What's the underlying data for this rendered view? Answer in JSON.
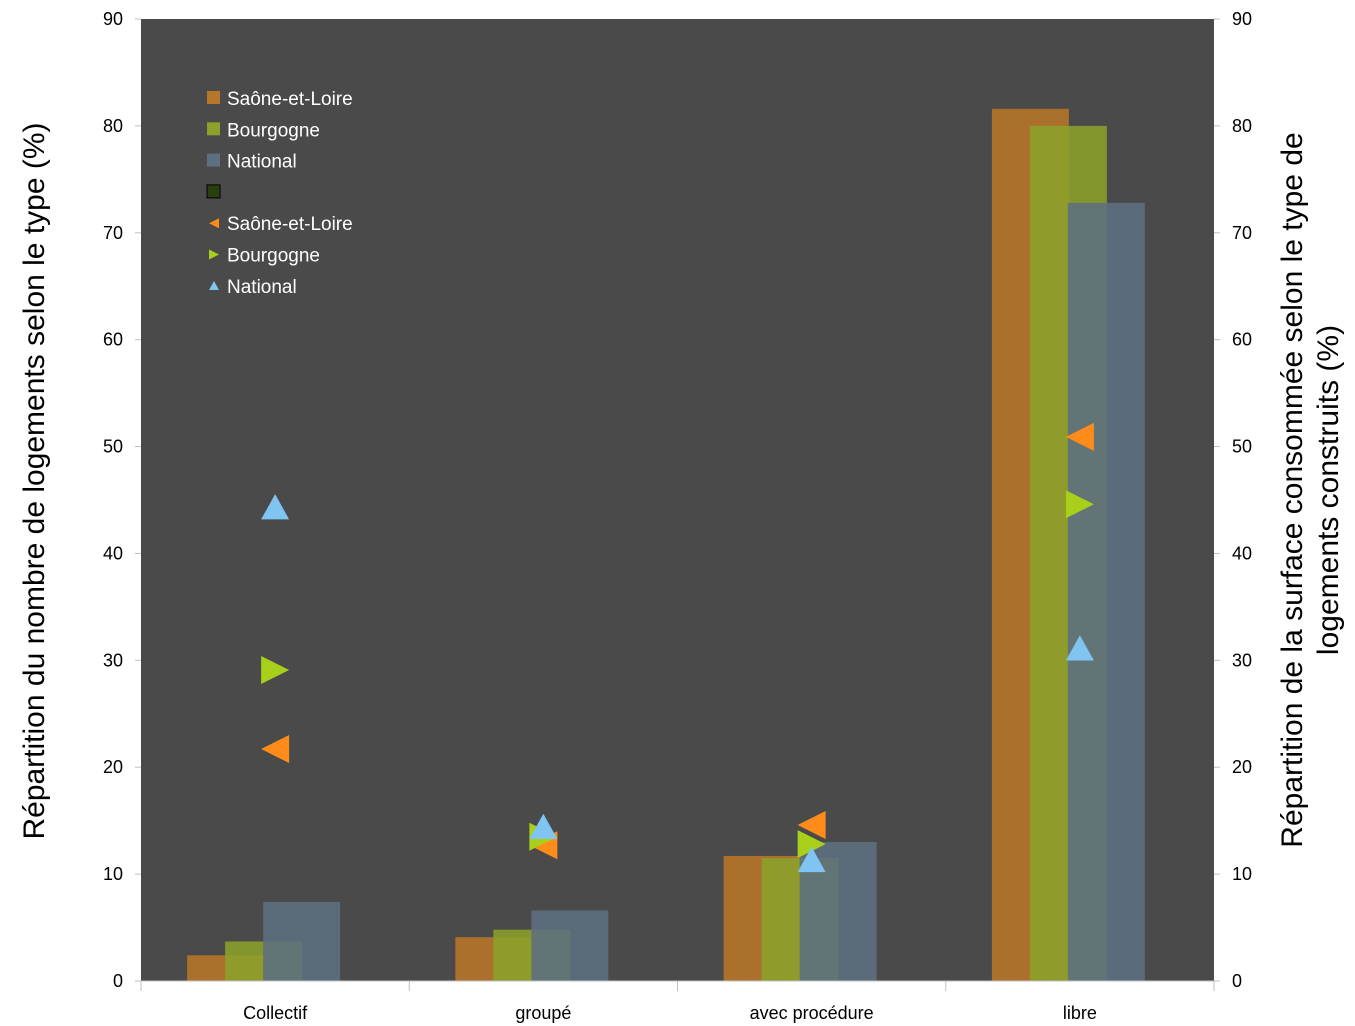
{
  "chart_data": {
    "type": "bar",
    "categories": [
      "Collectif",
      "groupé",
      "avec procédure",
      "libre"
    ],
    "bar_series": [
      {
        "name": "Saône-et-Loire",
        "values": [
          2.4,
          4.1,
          11.7,
          81.6
        ],
        "color": "#b87628"
      },
      {
        "name": "Bourgogne",
        "values": [
          3.7,
          4.8,
          11.5,
          80.0
        ],
        "color": "#8ba12a"
      },
      {
        "name": "National",
        "values": [
          7.4,
          6.6,
          13.0,
          72.8
        ],
        "color": "#5d7080"
      }
    ],
    "marker_series": [
      {
        "name": "Saône-et-Loire",
        "marker": "triangle-left",
        "values": [
          21.7,
          12.7,
          14.6,
          50.9
        ],
        "color": "#ff8c1a"
      },
      {
        "name": "Bourgogne",
        "marker": "triangle-right",
        "values": [
          29.1,
          13.5,
          12.8,
          44.6
        ],
        "color": "#a8d01a"
      },
      {
        "name": "National",
        "marker": "triangle-up",
        "values": [
          44.3,
          14.4,
          11.3,
          31.1
        ],
        "color": "#80c4f2"
      }
    ],
    "legend_extra_swatch_color": "#2a3f10",
    "ylabel_left": "Répartition du nombre de logements selon le type (%)",
    "ylabel_right_lines": [
      "Répartition de la surface consommée selon le type de",
      "logements construits (%)"
    ],
    "ylim": [
      0,
      90
    ],
    "yticks": [
      0,
      10,
      20,
      30,
      40,
      50,
      60,
      70,
      80,
      90
    ],
    "grid": false,
    "legend_position": "top-left",
    "plot_background": "#4a4a4a"
  }
}
